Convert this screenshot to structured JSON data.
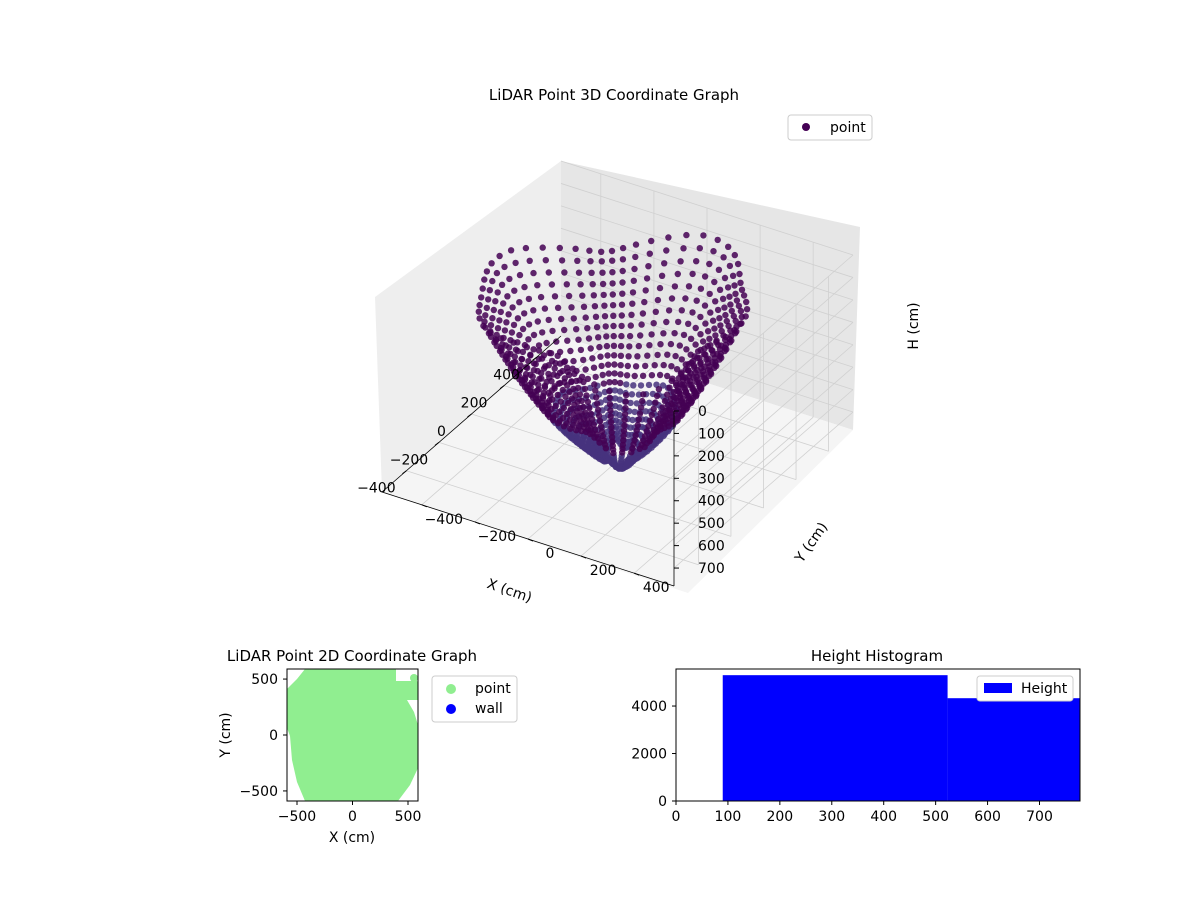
{
  "colors": {
    "point3d": "#440154",
    "point3d_low": "#46337e",
    "point2d": "#90ee90",
    "wall": "#0000ff",
    "hist": "#0000ff",
    "pane": "#f2f2f2"
  },
  "chart_data": [
    {
      "type": "scatter",
      "projection": "3d",
      "title": "LiDAR Point 3D Coordinate Graph",
      "xlabel": "X (cm)",
      "ylabel": "Y (cm)",
      "zlabel": "H (cm)",
      "xticks": [
        "−400",
        "−200",
        "0",
        "200",
        "400"
      ],
      "yticks": [
        "−400",
        "−200",
        "0",
        "200",
        "400"
      ],
      "zticks": [
        "0",
        "100",
        "200",
        "300",
        "400",
        "500",
        "600",
        "700"
      ],
      "zaxis_inverted": true,
      "legend": [
        "point"
      ],
      "legend_position": "top-right",
      "grid": true,
      "xlim": [
        -550,
        550
      ],
      "ylim": [
        -550,
        550
      ],
      "zlim": [
        0,
        780
      ],
      "description_series": {
        "name": "point",
        "structure": "radial scan lines from a center, points along each line at heights 100–780 cm, radius up to ~550 cm"
      }
    },
    {
      "type": "scatter",
      "title": "LiDAR Point 2D Coordinate Graph",
      "xlabel": "X (cm)",
      "ylabel": "Y (cm)",
      "xticks": [
        "−500",
        "0",
        "500"
      ],
      "yticks": [
        "500",
        "0",
        "−500"
      ],
      "xlim": [
        -590,
        590
      ],
      "ylim": [
        -590,
        590
      ],
      "legend": [
        "point",
        "wall"
      ],
      "legend_position": "outside-right",
      "series": [
        {
          "name": "point",
          "approx_region": "filled disc radius ~560 cm centered at (0, 0)"
        },
        {
          "name": "wall",
          "values": []
        }
      ]
    },
    {
      "type": "bar",
      "title": "Height Histogram",
      "legend": [
        "Height"
      ],
      "legend_position": "top-right",
      "xticks": [
        "0",
        "100",
        "200",
        "300",
        "400",
        "500",
        "600",
        "700"
      ],
      "yticks": [
        "0",
        "2000",
        "4000"
      ],
      "xlim": [
        0,
        778
      ],
      "ylim": [
        0,
        5560
      ],
      "bins": [
        {
          "x0": 90,
          "x1": 523,
          "count": 5300
        },
        {
          "x0": 523,
          "x1": 778,
          "count": 4330
        }
      ]
    }
  ]
}
